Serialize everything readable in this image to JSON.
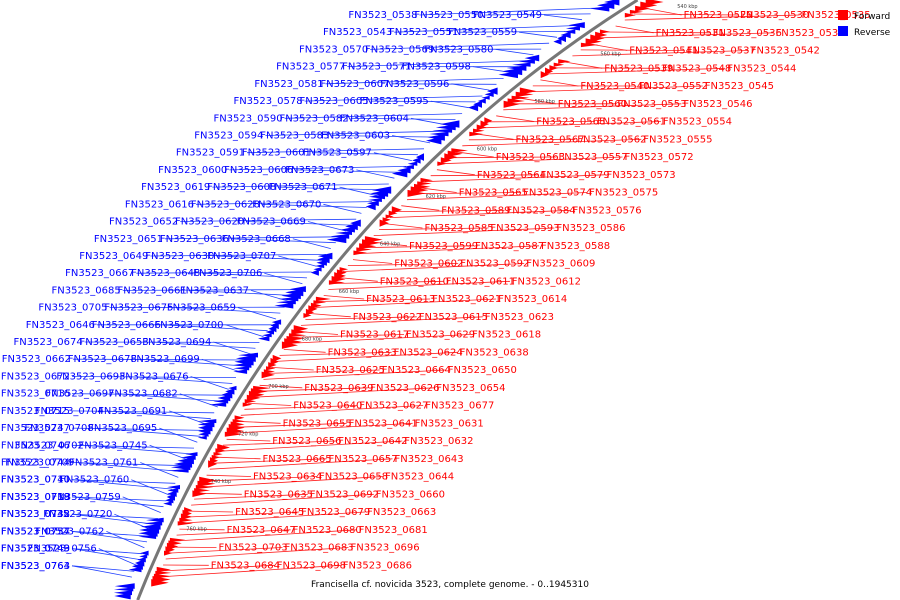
{
  "caption": "Francisella cf. novicida 3523, complete genome. - 0..1945310",
  "legend": [
    {
      "label": "Forward",
      "color": "#ff0000"
    },
    {
      "label": "Reverse",
      "color": "#0000ff"
    }
  ],
  "colors": {
    "forward": "#ff0000",
    "reverse": "#0000ff",
    "leader_forward": "#ff2020",
    "leader_reverse": "#2040ff",
    "backbone": "#777777"
  },
  "ticks": [
    "540 kbp",
    "560 kbp",
    "580 kbp",
    "600 kbp",
    "620 kbp",
    "640 kbp",
    "660 kbp",
    "680 kbp",
    "700 kbp",
    "720 kbp",
    "740 kbp",
    "760 kbp"
  ],
  "forward_labels": [
    "FN3523_0529",
    "FN3523_0530",
    "FN3523_0535",
    "FN3523_0531",
    "FN3523_0536",
    "FN3523_0532",
    "FN3523_0541",
    "FN3523_0537",
    "FN3523_0542",
    "FN3523_0539",
    "FN3523_0548",
    "FN3523_0544",
    "FN3523_0540",
    "FN3523_0552",
    "FN3523_0545",
    "FN3523_0560",
    "FN3523_0553",
    "FN3523_0546",
    "FN3523_0568",
    "FN3523_0561",
    "FN3523_0554",
    "FN3523_0567",
    "FN3523_0562",
    "FN3523_0555",
    "FN3523_0563",
    "FN3523_0557",
    "FN3523_0572",
    "FN3523_0564",
    "FN3523_0579",
    "FN3523_0573",
    "FN3523_0565",
    "FN3523_0574",
    "FN3523_0575",
    "FN3523_0589",
    "FN3523_0584",
    "FN3523_0576",
    "FN3523_0585",
    "FN3523_0593",
    "FN3523_0586",
    "FN3523_0599",
    "FN3523_0587",
    "FN3523_0588",
    "FN3523_0602",
    "FN3523_0592",
    "FN3523_0609",
    "FN3523_0610",
    "FN3523_0611",
    "FN3523_0612",
    "FN3523_0613",
    "FN3523_0621",
    "FN3523_0614",
    "FN3523_0622",
    "FN3523_0615",
    "FN3523_0623",
    "FN3523_0617",
    "FN3523_0629",
    "FN3523_0618",
    "FN3523_0633",
    "FN3523_0624",
    "FN3523_0638",
    "FN3523_0625",
    "FN3523_0664",
    "FN3523_0650",
    "FN3523_0639",
    "FN3523_0626",
    "FN3523_0654",
    "FN3523_0640",
    "FN3523_0627",
    "FN3523_0677",
    "FN3523_0655",
    "FN3523_0641",
    "FN3523_0631",
    "FN3523_0656",
    "FN3523_0642",
    "FN3523_0632",
    "FN3523_0665",
    "FN3523_0657",
    "FN3523_0643",
    "FN3523_0634",
    "FN3523_0658",
    "FN3523_0644",
    "FN3523_0635",
    "FN3523_0692",
    "FN3523_0660",
    "FN3523_0645",
    "FN3523_0679",
    "FN3523_0663",
    "FN3523_0647",
    "FN3523_0680",
    "FN3523_0681",
    "FN3523_0703",
    "FN3523_0683",
    "FN3523_0696",
    "FN3523_0684",
    "FN3523_0698",
    "FN3523_0686"
  ],
  "reverse_labels": [
    "FN3523_0538",
    "FN3523_0550",
    "FN3523_0549",
    "FN3523_0543",
    "FN3523_0551",
    "FN3523_0559",
    "FN3523_0570",
    "FN3523_0569",
    "FN3523_0580",
    "FN3523_0577",
    "FN3523_0571",
    "FN3523_0598",
    "FN3523_0581",
    "FN3523_0607",
    "FN3523_0596",
    "FN3523_0578",
    "FN3523_0605",
    "FN3523_0595",
    "FN3523_0590",
    "FN3523_0582",
    "FN3523_0604",
    "FN3523_0594",
    "FN3523_0583",
    "FN3523_0603",
    "FN3523_0591",
    "FN3523_0601",
    "FN3523_0597",
    "FN3523_0600",
    "FN3523_0606",
    "FN3523_0673",
    "FN3523_0619",
    "FN3523_0608",
    "FN3523_0671",
    "FN3523_0616",
    "FN3523_0628",
    "FN3523_0670",
    "FN3523_0652",
    "FN3523_0620",
    "FN3523_0669",
    "FN3523_0651",
    "FN3523_0636",
    "FN3523_0668",
    "FN3523_0649",
    "FN3523_0630",
    "FN3523_0707",
    "FN3523_0667",
    "FN3523_0648",
    "FN3523_0706",
    "FN3523_0685",
    "FN3523_0661",
    "FN3523_0637",
    "FN3523_0705",
    "FN3523_0675",
    "FN3523_0659",
    "FN3523_0646",
    "FN3523_0666",
    "FN3523_0700",
    "FN3523_0674",
    "FN3523_0653",
    "FN3523_0694",
    "FN3523_0662",
    "FN3523_0678",
    "FN3523_0699",
    "FN3523_0672",
    "FN3523_0693",
    "FN3523_0676",
    "FN3523_0716",
    "FN3523_0697",
    "FN3523_0682",
    "FN3523_0715",
    "FN3523_0704",
    "FN3523_0691",
    "FN3523_0747",
    "FN3523_0708",
    "FN3523_0695",
    "FN3523_0746",
    "FN3523_0702",
    "FN3523_0745",
    "FN3523_0744",
    "FN3523_0709",
    "FN3523_0761",
    "FN3523_0740",
    "FN3523_0710",
    "FN3523_0760",
    "FN3523_0739",
    "FN3523_0718",
    "FN3523_0759",
    "FN3523_0738",
    "FN3523_0742",
    "FN3523_0720",
    "FN3523_0754",
    "FN3523_0737",
    "FN3523_0762",
    "FN3523_0743",
    "FN3523_0749",
    "FN3523_0756",
    "FN3523_0763",
    "FN3523_0764"
  ]
}
